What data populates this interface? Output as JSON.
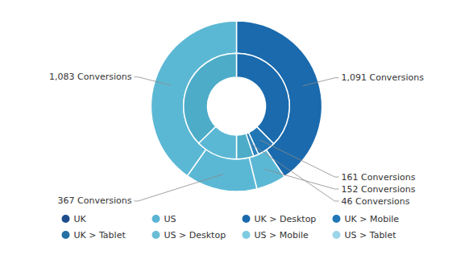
{
  "chart_data": {
    "type": "donut",
    "series": [
      {
        "values": [
          1091,
          152,
          367,
          1083
        ],
        "colors": [
          "#1a6aad",
          "#5bb8d4",
          "#5bb8d4",
          "#5bb8d4"
        ],
        "value_labels": [
          "1,091 Conversions",
          "152 Conversions",
          "367 Conversions",
          "1,083 Conversions"
        ]
      },
      {
        "values": [
          1091,
          161,
          46,
          152,
          367,
          1083
        ],
        "colors": [
          "#1a6aad",
          "#2176b5",
          "#2d82bd",
          "#4dacc8",
          "#5bb8d4",
          "#4dacc8"
        ],
        "value_labels": [
          null,
          "161 Conversions",
          "46 Conversions",
          null,
          null,
          null
        ]
      }
    ],
    "data_labels": true,
    "legend": "bottom",
    "legend_entries": [
      {
        "label": "UK",
        "color": "#1e4d8c"
      },
      {
        "label": "US",
        "color": "#5ab4d4"
      },
      {
        "label": "UK > Desktop",
        "color": "#1a6aad"
      },
      {
        "label": "UK > Mobile",
        "color": "#2176b5"
      },
      {
        "label": "UK > Tablet",
        "color": "#2471a3"
      },
      {
        "label": "US > Desktop",
        "color": "#6bbdd6"
      },
      {
        "label": "US > Mobile",
        "color": "#7dcbe0"
      },
      {
        "label": "US > Tablet",
        "color": "#9dd5e8"
      }
    ]
  }
}
